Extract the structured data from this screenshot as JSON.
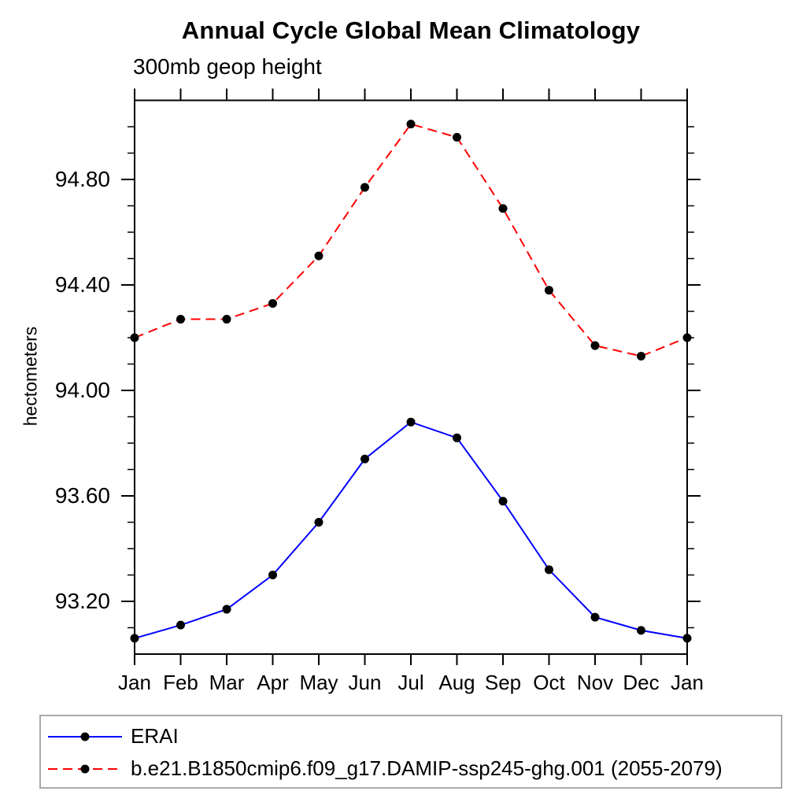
{
  "chart_data": {
    "type": "line",
    "title": "Annual Cycle Global Mean Climatology",
    "subtitle": "300mb geop height",
    "ylabel": "hectometers",
    "categories": [
      "Jan",
      "Feb",
      "Mar",
      "Apr",
      "May",
      "Jun",
      "Jul",
      "Aug",
      "Sep",
      "Oct",
      "Nov",
      "Dec",
      "Jan"
    ],
    "ylim": [
      93.0,
      95.1
    ],
    "y_major_ticks": [
      93.2,
      93.6,
      94.0,
      94.4,
      94.8
    ],
    "y_major_labels": [
      "93.20",
      "93.60",
      "94.00",
      "94.40",
      "94.80"
    ],
    "y_minor_step": 0.1,
    "grid": false,
    "legend_position": "bottom",
    "axis_color": "#000000",
    "legend_border_color": "#a9a9a9",
    "marker": {
      "shape": "circle",
      "color": "#000000"
    },
    "series": [
      {
        "name": "ERAI",
        "color": "#0000ff",
        "style": "solid",
        "values": [
          93.06,
          93.11,
          93.17,
          93.3,
          93.5,
          93.74,
          93.88,
          93.82,
          93.58,
          93.32,
          93.14,
          93.09,
          93.06
        ]
      },
      {
        "name": "b.e21.B1850cmip6.f09_g17.DAMIP-ssp245-ghg.001 (2055-2079)",
        "color": "#ff0000",
        "style": "dashed",
        "values": [
          94.2,
          94.27,
          94.27,
          94.33,
          94.51,
          94.77,
          95.01,
          94.96,
          94.69,
          94.38,
          94.17,
          94.13,
          94.2
        ]
      }
    ]
  }
}
